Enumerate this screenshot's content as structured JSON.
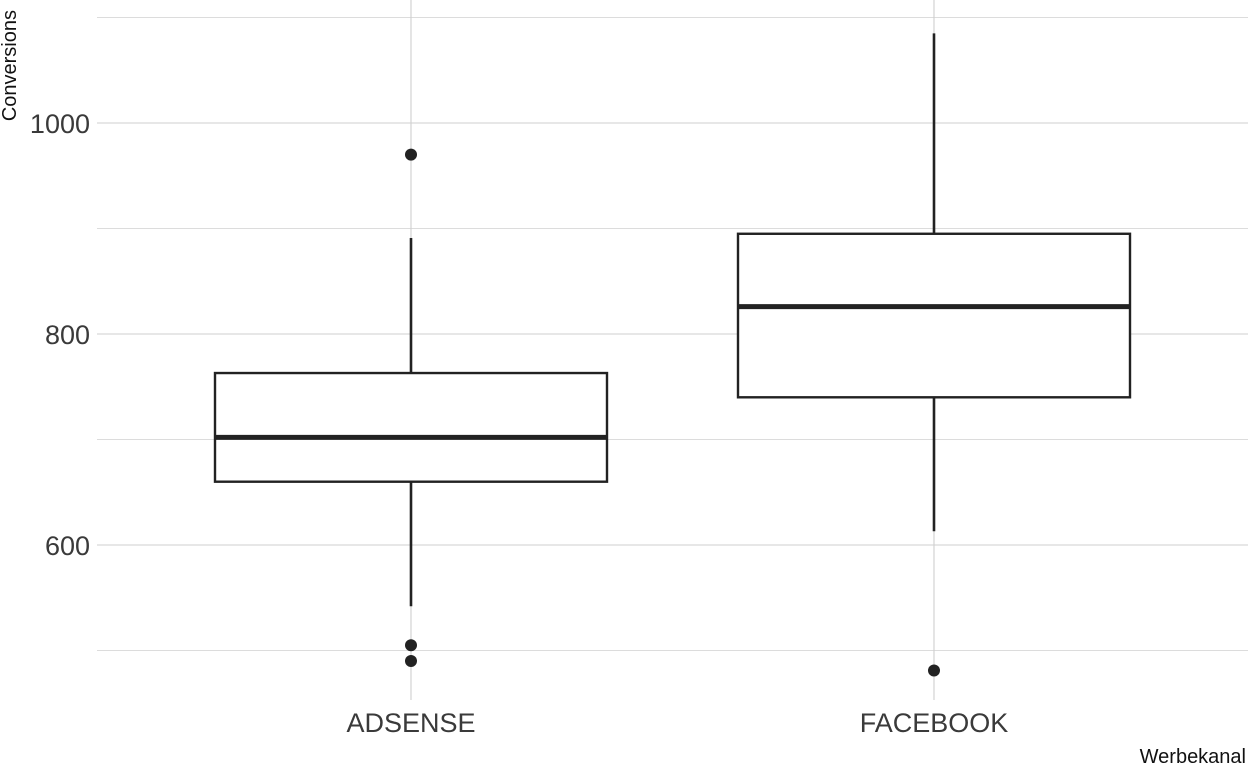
{
  "chart_data": {
    "type": "box",
    "xlabel": "Werbekanal",
    "ylabel": "Conversions",
    "ylim": [
      450,
      1100
    ],
    "y_ticks": [
      600,
      800,
      1000
    ],
    "y_minor": [
      500,
      700,
      900,
      1100
    ],
    "grid": true,
    "categories": [
      "ADSENSE",
      "FACEBOOK"
    ],
    "boxes": [
      {
        "category": "ADSENSE",
        "whisker_low": 542,
        "q1": 660,
        "median": 702,
        "q3": 763,
        "whisker_high": 891,
        "outliers": [
          970,
          505,
          490
        ]
      },
      {
        "category": "FACEBOOK",
        "whisker_low": 613,
        "q1": 740,
        "median": 826,
        "q3": 895,
        "whisker_high": 1085,
        "outliers": [
          481
        ]
      }
    ]
  }
}
